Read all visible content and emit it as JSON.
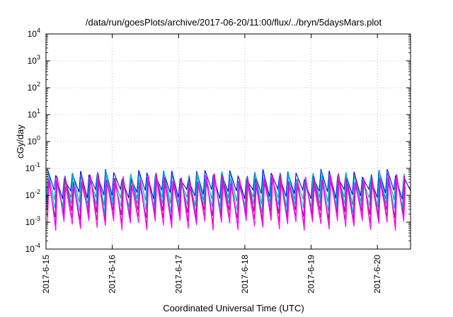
{
  "chart_data": {
    "type": "line",
    "title": "/data/run/goesPlots/archive/2017-06-20/11:00/flux/../bryn/5daysMars.plot",
    "xlabel": "Coordinated Universal Time (UTC)",
    "ylabel": "cGy/day",
    "y_scale": "log",
    "ylim": [
      0.0001,
      10000
    ],
    "y_ticks": [
      {
        "base": "10",
        "exp": "-4"
      },
      {
        "base": "10",
        "exp": "-3"
      },
      {
        "base": "10",
        "exp": "-2"
      },
      {
        "base": "10",
        "exp": "-1"
      },
      {
        "base": "10",
        "exp": "0"
      },
      {
        "base": "10",
        "exp": "1"
      },
      {
        "base": "10",
        "exp": "2"
      },
      {
        "base": "10",
        "exp": "3"
      },
      {
        "base": "10",
        "exp": "4"
      }
    ],
    "xlim": [
      "2017-06-15 00:00",
      "2017-06-20 12:00"
    ],
    "x_ticks": [
      "2017-6-15",
      "2017-6-16",
      "2017-6-17",
      "2017-6-18",
      "2017-6-19",
      "2017-6-20"
    ],
    "grid": true,
    "pattern": {
      "description_values": "sawtooth: rises to peak then drops sharply, repeating every ~3 hours",
      "cycle_hours": 3,
      "series_peaks": [
        0.065,
        0.058,
        0.05,
        0.045,
        0.04,
        0.035
      ],
      "series_troughs": [
        0.012,
        0.006,
        0.0035,
        0.002,
        0.0012,
        0.0008
      ]
    },
    "series": [
      {
        "color": "#0000ff",
        "peak": 0.065,
        "trough": 0.012
      },
      {
        "color": "#00aaaa",
        "peak": 0.058,
        "trough": 0.006
      },
      {
        "color": "#00c0ff",
        "peak": 0.05,
        "trough": 0.0035
      },
      {
        "color": "#b000b0",
        "peak": 0.045,
        "trough": 0.002
      },
      {
        "color": "#e0208a",
        "peak": 0.04,
        "trough": 0.0012
      },
      {
        "color": "#ff00ff",
        "peak": 0.035,
        "trough": 0.0008
      }
    ]
  }
}
